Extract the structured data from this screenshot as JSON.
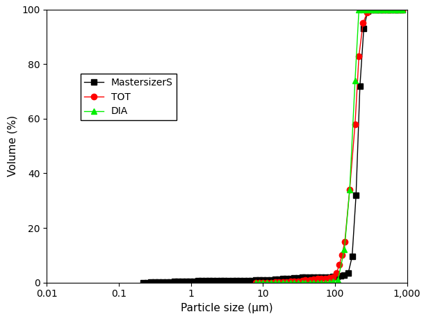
{
  "chart_data": {
    "type": "line",
    "x_label": "Particle size (μm)",
    "y_label": "Volume (%)",
    "log": "x",
    "grid": false,
    "legend": "center left",
    "xlim": [
      0.01,
      1000
    ],
    "ylim": [
      0,
      100
    ],
    "xticks": [
      0.01,
      0.1,
      1,
      10,
      100,
      {
        "value": 1000,
        "label": "1,000"
      }
    ],
    "yticks": [
      0,
      20,
      40,
      60,
      80,
      100
    ],
    "series": [
      {
        "name": "MastersizerS",
        "color": "#000000",
        "marker": "square",
        "line_style": "solid",
        "x": [
          0.22,
          0.25,
          0.28,
          0.32,
          0.36,
          0.41,
          0.46,
          0.52,
          0.59,
          0.67,
          0.76,
          0.86,
          0.97,
          1.1,
          1.25,
          1.4,
          1.6,
          1.8,
          2.0,
          2.3,
          2.6,
          2.9,
          3.3,
          3.8,
          4.3,
          4.8,
          5.5,
          6.2,
          7,
          7.9,
          9,
          10,
          11.5,
          13,
          14.7,
          16.6,
          18.8,
          21,
          24,
          27,
          31,
          35,
          39,
          45,
          50,
          57,
          65,
          73,
          83,
          94,
          106,
          120,
          135,
          153,
          173,
          196,
          222,
          251,
          284,
          321,
          363,
          411,
          465,
          526,
          595,
          673,
          762,
          862
        ],
        "values": [
          0.0,
          0.0,
          0.05,
          0.1,
          0.1,
          0.15,
          0.2,
          0.25,
          0.3,
          0.35,
          0.4,
          0.45,
          0.5,
          0.5,
          0.55,
          0.55,
          0.6,
          0.6,
          0.6,
          0.65,
          0.65,
          0.65,
          0.7,
          0.7,
          0.7,
          0.7,
          0.75,
          0.75,
          0.75,
          0.8,
          0.8,
          0.85,
          0.9,
          1.0,
          1.1,
          1.2,
          1.3,
          1.4,
          1.5,
          1.6,
          1.7,
          1.8,
          1.9,
          1.9,
          2.0,
          2.0,
          2.0,
          2.0,
          2.0,
          2.1,
          2.3,
          2.5,
          2.7,
          3.5,
          9.5,
          32,
          72,
          93,
          99.5,
          100,
          100,
          100,
          100,
          100,
          100,
          100,
          100,
          100
        ]
      },
      {
        "name": "TOT",
        "color": "#ff0000",
        "marker": "circle",
        "line_style": "solid",
        "x": [
          8,
          9,
          10,
          11.5,
          13,
          14.7,
          16.6,
          18.8,
          21,
          24,
          27,
          31,
          35,
          39,
          45,
          50,
          57,
          65,
          73,
          83,
          94,
          105,
          115,
          125,
          137,
          160,
          190,
          215,
          245,
          280,
          320,
          360,
          410,
          465,
          525,
          595,
          670,
          760,
          860
        ],
        "values": [
          0,
          0,
          0,
          0,
          0,
          0.05,
          0.1,
          0.15,
          0.2,
          0.3,
          0.4,
          0.5,
          0.7,
          0.8,
          1.0,
          1.1,
          1.3,
          1.4,
          1.5,
          1.6,
          2.0,
          3.5,
          6.5,
          10,
          15,
          34,
          58,
          83,
          95,
          99,
          100,
          100,
          100,
          100,
          100,
          100,
          100,
          100,
          100
        ]
      },
      {
        "name": "DIA",
        "color": "#00ee00",
        "marker": "triangle",
        "line_style": "solid",
        "x": [
          8,
          9,
          10,
          11.5,
          13,
          14.7,
          16.6,
          18.8,
          21,
          24,
          27,
          31,
          35,
          39,
          45,
          50,
          57,
          65,
          73,
          83,
          94,
          110,
          135,
          160,
          190,
          215,
          245,
          280,
          320,
          360,
          410,
          465,
          525,
          595,
          670,
          760,
          860
        ],
        "values": [
          0,
          0,
          0,
          0,
          0,
          0,
          0,
          0,
          0,
          0,
          0,
          0,
          0,
          0,
          0,
          0,
          0,
          0,
          0,
          0.1,
          0.3,
          1.0,
          12,
          34,
          74,
          100,
          100,
          100,
          100,
          100,
          100,
          100,
          100,
          100,
          100,
          100,
          100
        ]
      }
    ]
  }
}
